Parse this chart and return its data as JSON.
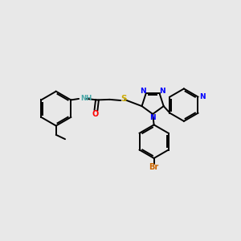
{
  "background_color": "#e8e8e8",
  "bond_color": "#000000",
  "figsize": [
    3.0,
    3.0
  ],
  "dpi": 100,
  "xlim": [
    0,
    10
  ],
  "ylim": [
    0,
    10
  ],
  "lw": 1.4,
  "hex_r": 0.72,
  "tri_r": 0.48,
  "colors": {
    "N": "#0000ff",
    "O": "#ff0000",
    "S": "#ccaa00",
    "Br": "#cc6600",
    "NH": "#4aa8a8",
    "bond": "#000000"
  }
}
